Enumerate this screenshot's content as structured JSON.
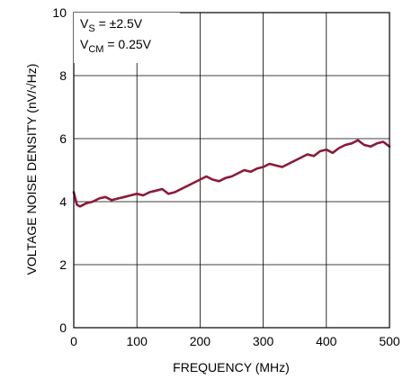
{
  "chart_data": {
    "type": "line",
    "title": "",
    "xlabel": "FREQUENCY (MHz)",
    "ylabel": "VOLTAGE NOISE DENSITY (nV/√Hz)",
    "xlim": [
      0,
      500
    ],
    "ylim": [
      0,
      10
    ],
    "xticks": [
      "0",
      "100",
      "200",
      "300",
      "400",
      "500"
    ],
    "yticks": [
      "0",
      "2",
      "4",
      "6",
      "8",
      "10"
    ],
    "grid": true,
    "annotation": {
      "line1_main": "V",
      "line1_sub": "S",
      "line1_rest": " = ±2.5V",
      "line2_main": "V",
      "line2_sub": "CM",
      "line2_rest": " = 0.25V"
    },
    "series_color": "#8b1a3a",
    "series": [
      {
        "x": [
          0,
          5,
          10,
          20,
          30,
          40,
          50,
          60,
          70,
          80,
          90,
          100,
          110,
          120,
          130,
          140,
          150,
          160,
          170,
          180,
          190,
          200,
          210,
          220,
          230,
          240,
          250,
          260,
          270,
          280,
          290,
          300,
          310,
          320,
          330,
          340,
          350,
          360,
          370,
          380,
          390,
          400,
          410,
          420,
          430,
          440,
          450,
          460,
          470,
          480,
          490,
          500
        ],
        "y": [
          4.3,
          3.9,
          3.85,
          3.95,
          4.0,
          4.1,
          4.15,
          4.05,
          4.1,
          4.15,
          4.2,
          4.25,
          4.2,
          4.3,
          4.35,
          4.4,
          4.25,
          4.3,
          4.4,
          4.5,
          4.6,
          4.7,
          4.8,
          4.7,
          4.65,
          4.75,
          4.8,
          4.9,
          5.0,
          4.95,
          5.05,
          5.1,
          5.2,
          5.15,
          5.1,
          5.2,
          5.3,
          5.4,
          5.5,
          5.45,
          5.6,
          5.65,
          5.55,
          5.7,
          5.8,
          5.85,
          5.95,
          5.8,
          5.75,
          5.85,
          5.9,
          5.75
        ]
      }
    ]
  }
}
